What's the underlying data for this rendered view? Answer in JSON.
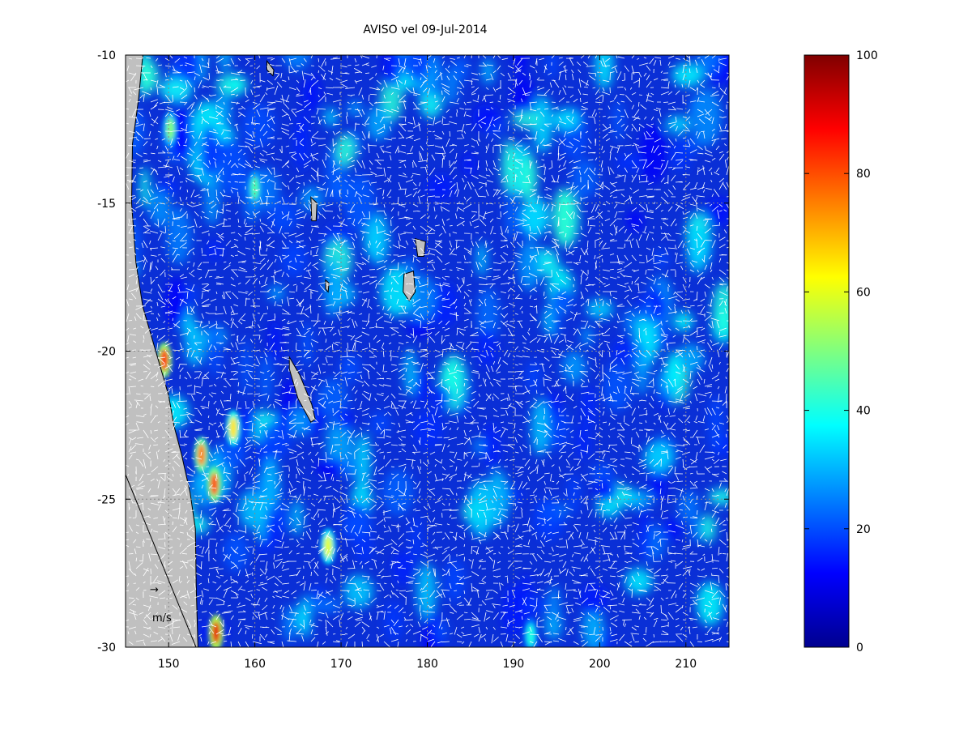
{
  "title": "AVISO vel 09-Jul-2014",
  "map": {
    "x_ticks": [
      "150",
      "160",
      "170",
      "180",
      "190",
      "200",
      "210"
    ],
    "x_tick_values": [
      150,
      160,
      170,
      180,
      190,
      200,
      210
    ],
    "y_ticks": [
      "-10",
      "-15",
      "-20",
      "-25",
      "-30"
    ],
    "y_tick_values": [
      -10,
      -15,
      -20,
      -25,
      -30
    ],
    "lon_range": [
      145,
      215
    ],
    "lat_range": [
      -30,
      -10
    ],
    "grid": true,
    "ocean_color": "#0a2fd6",
    "land_color": "#c0c0c0",
    "vector_color": "#ffffff",
    "reference_arrow_label": "m/s",
    "reference_arrow_glyph": "→"
  },
  "colorbar": {
    "tick_labels": [
      "0",
      "20",
      "40",
      "60",
      "80",
      "100"
    ],
    "tick_values": [
      0,
      20,
      40,
      60,
      80,
      100
    ],
    "range": [
      0,
      100
    ],
    "colormap": "jet"
  },
  "chart_data": {
    "type": "heatmap",
    "title": "AVISO vel 09-Jul-2014",
    "xlabel": "",
    "ylabel": "",
    "xlim": [
      145,
      215
    ],
    "ylim": [
      -30,
      -10
    ],
    "x_ticks": [
      150,
      160,
      170,
      180,
      190,
      200,
      210
    ],
    "y_ticks": [
      -10,
      -15,
      -20,
      -25,
      -30
    ],
    "colorbar_range": [
      0,
      100
    ],
    "colorbar_ticks": [
      0,
      20,
      40,
      60,
      80,
      100
    ],
    "grid": true,
    "hotspots": [
      {
        "lon": 149.5,
        "lat": -20.3,
        "value": 85
      },
      {
        "lon": 153.8,
        "lat": -23.5,
        "value": 75
      },
      {
        "lon": 155.3,
        "lat": -24.5,
        "value": 80
      },
      {
        "lon": 155.5,
        "lat": -29.5,
        "value": 90
      },
      {
        "lon": 157.5,
        "lat": -22.6,
        "value": 65
      },
      {
        "lon": 168.5,
        "lat": -26.6,
        "value": 60
      },
      {
        "lon": 150.2,
        "lat": -12.5,
        "value": 50
      },
      {
        "lon": 160.0,
        "lat": -14.5,
        "value": 45
      },
      {
        "lon": 192.0,
        "lat": -29.6,
        "value": 40
      }
    ]
  }
}
